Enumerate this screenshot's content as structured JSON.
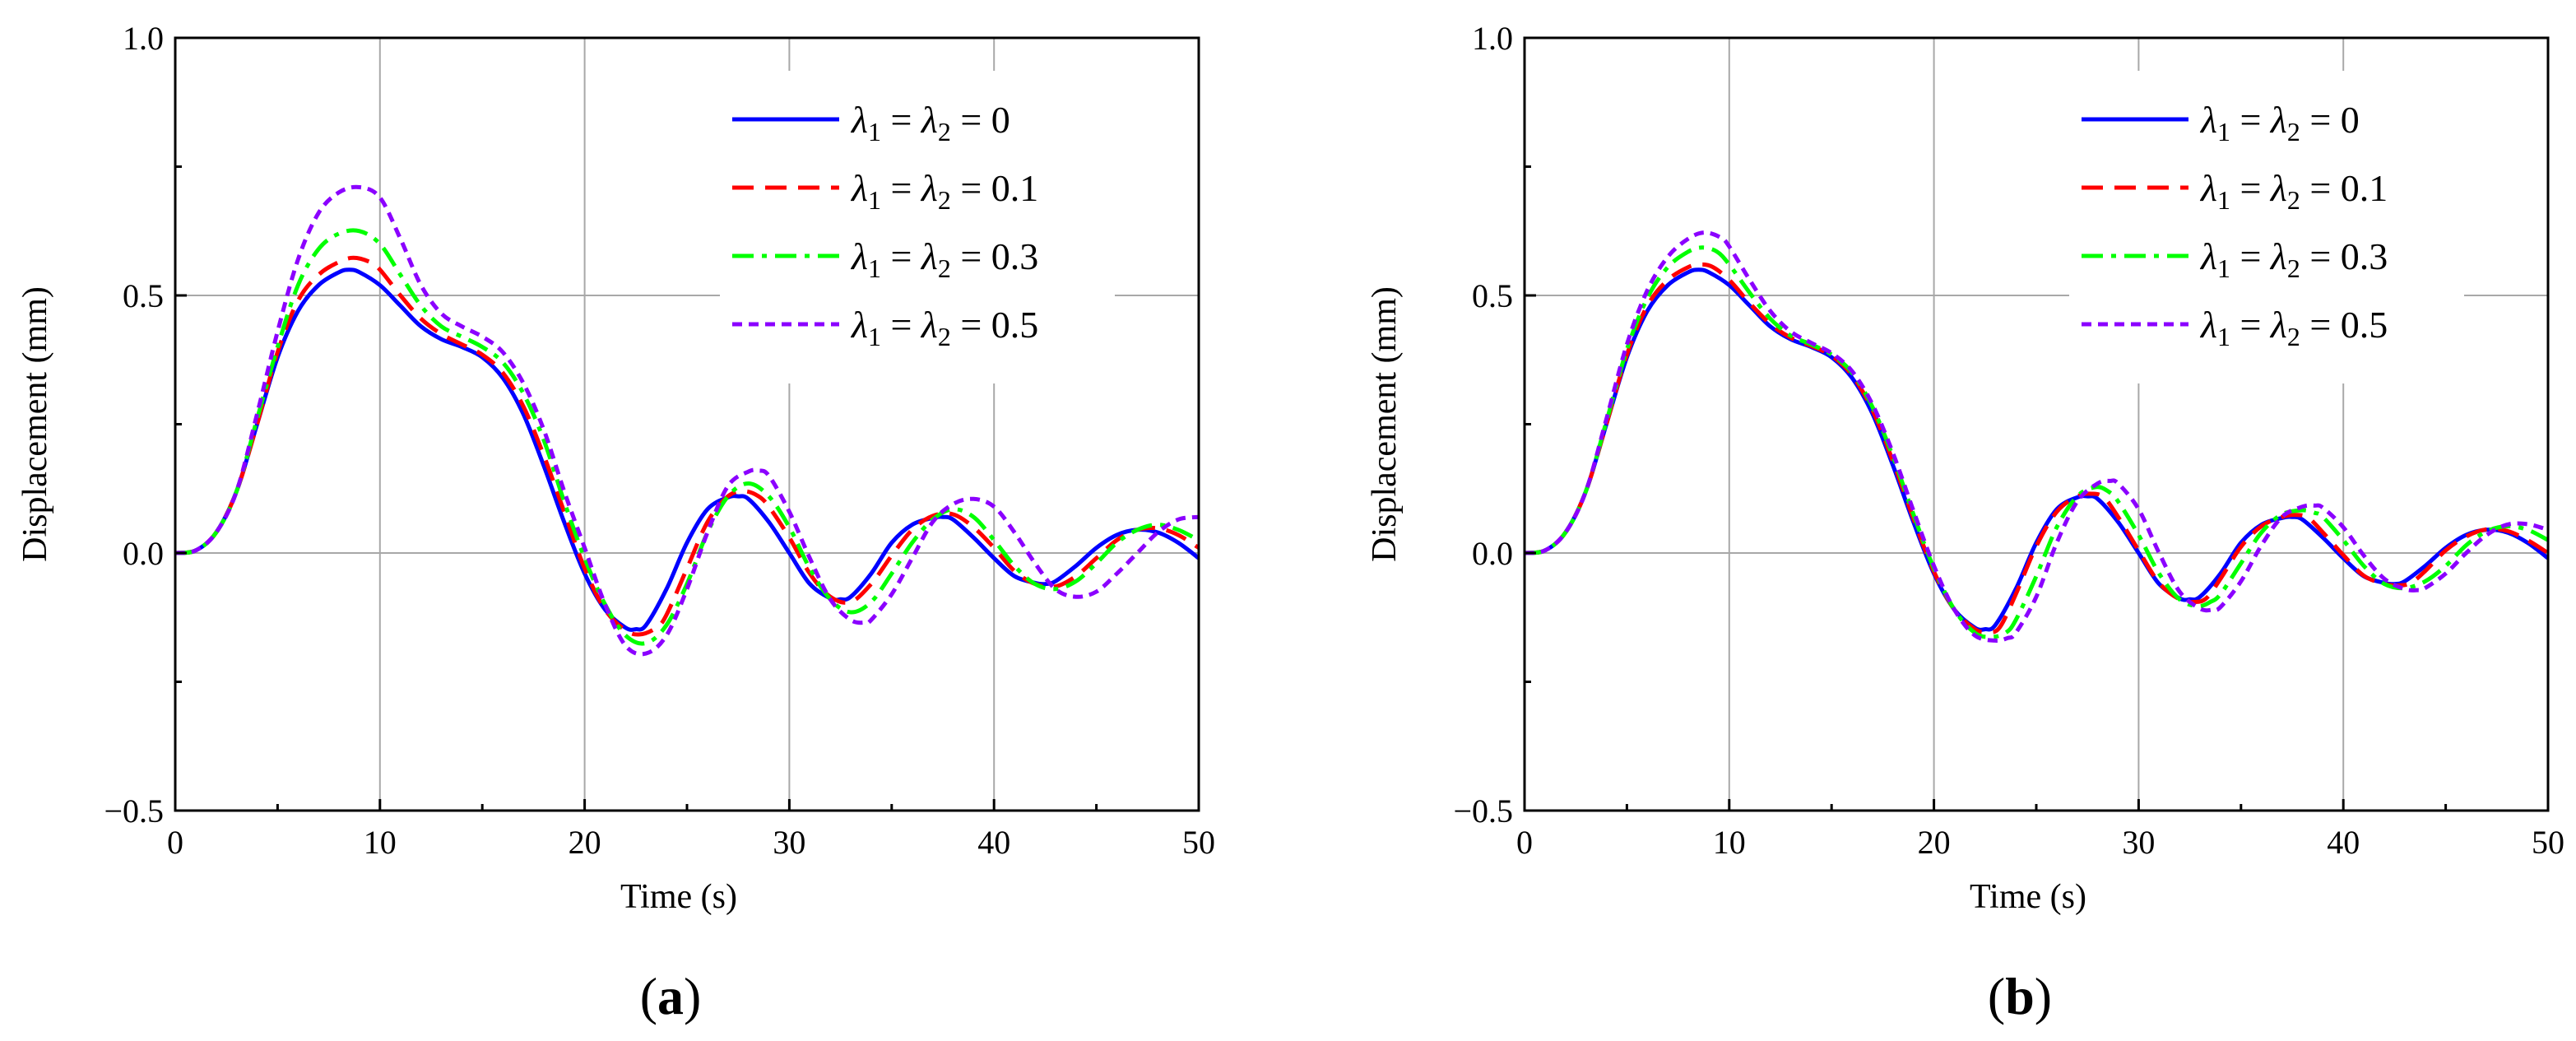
{
  "figure": {
    "panels": [
      {
        "id": "a",
        "label_open": "(",
        "label_letter": "a",
        "label_close": ")"
      },
      {
        "id": "b",
        "label_open": "(",
        "label_letter": "b",
        "label_close": ")"
      }
    ]
  },
  "legend": {
    "lambda_prefix": "λ",
    "sub1": "1",
    "sub2": "2",
    "eq": " = "
  },
  "chart_data": [
    {
      "panel": "a",
      "type": "line",
      "title": "",
      "xlabel": "Time (s)",
      "ylabel": "Displacement (mm)",
      "xlim": [
        0,
        50
      ],
      "ylim": [
        -0.5,
        1.0
      ],
      "xticks": [
        "0",
        "10",
        "20",
        "30",
        "40",
        "50"
      ],
      "yticks": [
        "−0.5",
        "0.0",
        "0.5",
        "1.0"
      ],
      "grid": true,
      "legend_position": "top-right",
      "series": [
        {
          "name": "λ1 = λ2 = 0",
          "value_label": "0",
          "color": "#0000ff",
          "dash": "solid",
          "x": [
            0,
            1,
            2,
            3,
            4,
            5,
            6,
            7,
            8,
            8.5,
            9,
            10,
            11,
            12,
            13,
            14,
            15,
            16,
            17,
            18,
            19,
            20,
            21,
            22,
            22.5,
            23,
            24,
            25,
            26,
            27,
            27.5,
            28,
            29,
            30,
            31,
            32,
            32.5,
            33,
            34,
            35,
            36,
            37,
            37.5,
            38,
            39,
            40,
            41,
            42,
            42.5,
            43,
            44,
            45,
            46,
            47,
            48,
            49,
            50
          ],
          "y": [
            0,
            0.005,
            0.04,
            0.12,
            0.25,
            0.38,
            0.47,
            0.52,
            0.545,
            0.55,
            0.545,
            0.52,
            0.48,
            0.44,
            0.415,
            0.4,
            0.38,
            0.34,
            0.27,
            0.17,
            0.06,
            -0.04,
            -0.11,
            -0.145,
            -0.148,
            -0.14,
            -0.07,
            0.02,
            0.085,
            0.108,
            0.11,
            0.105,
            0.06,
            0.0,
            -0.06,
            -0.088,
            -0.09,
            -0.085,
            -0.04,
            0.02,
            0.055,
            0.068,
            0.07,
            0.065,
            0.03,
            -0.01,
            -0.045,
            -0.058,
            -0.06,
            -0.055,
            -0.025,
            0.01,
            0.035,
            0.045,
            0.04,
            0.02,
            -0.01
          ]
        },
        {
          "name": "λ1 = λ2 = 0.1",
          "value_label": "0.1",
          "color": "#ff0000",
          "dash": "dash",
          "x": [
            0,
            1,
            2,
            3,
            4,
            5,
            6,
            7,
            8,
            8.7,
            9.5,
            10,
            11,
            12,
            13,
            14,
            15,
            16,
            17,
            18,
            19,
            20,
            21,
            22,
            22.7,
            23.5,
            24,
            25,
            26,
            27,
            27.8,
            28.5,
            29,
            30,
            31,
            32,
            33,
            34,
            35,
            36,
            37,
            38,
            39,
            40,
            41,
            42,
            43,
            44,
            45,
            46,
            47,
            48,
            49,
            50
          ],
          "y": [
            0,
            0.005,
            0.04,
            0.12,
            0.25,
            0.39,
            0.49,
            0.54,
            0.565,
            0.573,
            0.565,
            0.55,
            0.5,
            0.455,
            0.425,
            0.405,
            0.385,
            0.35,
            0.285,
            0.19,
            0.08,
            -0.03,
            -0.11,
            -0.15,
            -0.158,
            -0.145,
            -0.12,
            -0.03,
            0.06,
            0.11,
            0.12,
            0.11,
            0.09,
            0.03,
            -0.04,
            -0.085,
            -0.095,
            -0.06,
            -0.005,
            0.045,
            0.072,
            0.075,
            0.05,
            0.01,
            -0.035,
            -0.06,
            -0.065,
            -0.045,
            -0.01,
            0.025,
            0.045,
            0.048,
            0.035,
            0.01
          ]
        },
        {
          "name": "λ1 = λ2 = 0.3",
          "value_label": "0.3",
          "color": "#00ff00",
          "dash": "dashdot",
          "x": [
            0,
            1,
            2,
            3,
            4,
            5,
            6,
            7,
            8,
            9,
            10,
            11,
            12,
            13,
            14,
            15,
            16,
            17,
            18,
            19,
            20,
            21,
            22,
            23,
            24,
            25,
            26,
            27,
            28,
            29,
            30,
            31,
            32,
            33,
            34,
            35,
            36,
            37,
            38,
            39,
            40,
            41,
            42,
            43,
            44,
            45,
            46,
            47,
            48,
            49,
            50
          ],
          "y": [
            0,
            0.005,
            0.04,
            0.12,
            0.26,
            0.4,
            0.52,
            0.59,
            0.62,
            0.625,
            0.6,
            0.54,
            0.48,
            0.44,
            0.42,
            0.4,
            0.37,
            0.31,
            0.22,
            0.1,
            -0.01,
            -0.1,
            -0.16,
            -0.175,
            -0.14,
            -0.06,
            0.04,
            0.11,
            0.135,
            0.11,
            0.05,
            -0.03,
            -0.09,
            -0.115,
            -0.095,
            -0.04,
            0.02,
            0.065,
            0.085,
            0.07,
            0.025,
            -0.025,
            -0.06,
            -0.07,
            -0.055,
            -0.02,
            0.02,
            0.045,
            0.055,
            0.045,
            0.025
          ]
        },
        {
          "name": "λ1 = λ2 = 0.5",
          "value_label": "0.5",
          "color": "#8b00ff",
          "dash": "short-dash",
          "x": [
            0,
            1,
            2,
            3,
            4,
            5,
            6,
            7,
            8,
            9,
            10,
            11,
            12,
            13,
            14,
            15,
            16,
            17,
            18,
            19,
            20,
            21,
            22,
            23,
            24,
            25,
            26,
            27,
            28,
            28.5,
            29,
            30,
            31,
            32,
            33,
            33.7,
            34,
            35,
            36,
            37,
            38,
            39,
            40,
            41,
            42,
            43,
            44,
            45,
            46,
            47,
            48,
            49,
            50
          ],
          "y": [
            0,
            0.005,
            0.04,
            0.12,
            0.27,
            0.43,
            0.57,
            0.66,
            0.7,
            0.71,
            0.69,
            0.61,
            0.52,
            0.465,
            0.44,
            0.42,
            0.39,
            0.33,
            0.24,
            0.12,
            0.01,
            -0.1,
            -0.18,
            -0.195,
            -0.16,
            -0.07,
            0.04,
            0.13,
            0.158,
            0.16,
            0.15,
            0.08,
            -0.01,
            -0.09,
            -0.13,
            -0.135,
            -0.13,
            -0.08,
            -0.01,
            0.06,
            0.095,
            0.105,
            0.09,
            0.04,
            -0.02,
            -0.07,
            -0.085,
            -0.075,
            -0.04,
            0.0,
            0.04,
            0.065,
            0.07
          ]
        }
      ]
    },
    {
      "panel": "b",
      "type": "line",
      "title": "",
      "xlabel": "Time (s)",
      "ylabel": "Displacement (mm)",
      "xlim": [
        0,
        50
      ],
      "ylim": [
        -0.5,
        1.0
      ],
      "xticks": [
        "0",
        "10",
        "20",
        "30",
        "40",
        "50"
      ],
      "yticks": [
        "−0.5",
        "0.0",
        "0.5",
        "1.0"
      ],
      "grid": true,
      "legend_position": "top-right",
      "series": [
        {
          "name": "λ1 = λ2 = 0",
          "value_label": "0",
          "color": "#0000ff",
          "dash": "solid",
          "x": [
            0,
            1,
            2,
            3,
            4,
            5,
            6,
            7,
            8,
            8.5,
            9,
            10,
            11,
            12,
            13,
            14,
            15,
            16,
            17,
            18,
            19,
            20,
            21,
            22,
            22.5,
            23,
            24,
            25,
            26,
            27,
            27.5,
            28,
            29,
            30,
            31,
            32,
            32.5,
            33,
            34,
            35,
            36,
            37,
            37.5,
            38,
            39,
            40,
            41,
            42,
            42.5,
            43,
            44,
            45,
            46,
            47,
            48,
            49,
            50
          ],
          "y": [
            0,
            0.005,
            0.04,
            0.12,
            0.25,
            0.38,
            0.47,
            0.52,
            0.545,
            0.55,
            0.545,
            0.52,
            0.48,
            0.44,
            0.415,
            0.4,
            0.38,
            0.34,
            0.27,
            0.17,
            0.06,
            -0.04,
            -0.11,
            -0.145,
            -0.148,
            -0.14,
            -0.07,
            0.02,
            0.085,
            0.108,
            0.11,
            0.105,
            0.06,
            0.0,
            -0.06,
            -0.088,
            -0.09,
            -0.085,
            -0.04,
            0.02,
            0.055,
            0.068,
            0.07,
            0.065,
            0.03,
            -0.01,
            -0.045,
            -0.058,
            -0.06,
            -0.055,
            -0.025,
            0.01,
            0.035,
            0.045,
            0.04,
            0.02,
            -0.01
          ]
        },
        {
          "name": "λ1 = λ2 = 0.1",
          "value_label": "0.1",
          "color": "#ff0000",
          "dash": "dash",
          "x": [
            0,
            1,
            2,
            3,
            4,
            5,
            6,
            7,
            8,
            8.6,
            9.2,
            10,
            11,
            12,
            13,
            14,
            15,
            16,
            17,
            18,
            19,
            20,
            21,
            22,
            22.6,
            23.2,
            24,
            25,
            26,
            27,
            27.7,
            28.3,
            29,
            30,
            31,
            32,
            32.7,
            33.3,
            34,
            35,
            36,
            37,
            37.7,
            38.3,
            39,
            40,
            41,
            42,
            42.7,
            43.3,
            44,
            45,
            46,
            47,
            48,
            49,
            50
          ],
          "y": [
            0,
            0.005,
            0.04,
            0.12,
            0.25,
            0.385,
            0.48,
            0.53,
            0.555,
            0.56,
            0.555,
            0.53,
            0.485,
            0.445,
            0.418,
            0.402,
            0.383,
            0.345,
            0.277,
            0.178,
            0.067,
            -0.036,
            -0.11,
            -0.148,
            -0.153,
            -0.145,
            -0.08,
            0.013,
            0.08,
            0.11,
            0.115,
            0.108,
            0.07,
            0.005,
            -0.058,
            -0.09,
            -0.095,
            -0.088,
            -0.05,
            0.012,
            0.052,
            0.07,
            0.074,
            0.068,
            0.04,
            -0.004,
            -0.044,
            -0.06,
            -0.063,
            -0.058,
            -0.035,
            0.005,
            0.032,
            0.046,
            0.043,
            0.025,
            0.0
          ]
        },
        {
          "name": "λ1 = λ2 = 0.3",
          "value_label": "0.3",
          "color": "#00ff00",
          "dash": "dashdot",
          "x": [
            0,
            1,
            2,
            3,
            4,
            5,
            6,
            7,
            8,
            8.7,
            9.4,
            10,
            11,
            12,
            13,
            14,
            15,
            16,
            17,
            18,
            19,
            20,
            21,
            22,
            22.8,
            23.5,
            24,
            25,
            26,
            27,
            27.9,
            28.5,
            29,
            30,
            31,
            32,
            32.9,
            33.5,
            34,
            35,
            36,
            37,
            38,
            38.6,
            39,
            40,
            41,
            42,
            43,
            44,
            45,
            46,
            47,
            48,
            49,
            50
          ],
          "y": [
            0,
            0.005,
            0.04,
            0.12,
            0.255,
            0.395,
            0.495,
            0.555,
            0.585,
            0.593,
            0.585,
            0.56,
            0.505,
            0.455,
            0.422,
            0.405,
            0.385,
            0.35,
            0.283,
            0.187,
            0.075,
            -0.03,
            -0.11,
            -0.155,
            -0.163,
            -0.155,
            -0.13,
            -0.045,
            0.05,
            0.11,
            0.128,
            0.12,
            0.1,
            0.035,
            -0.04,
            -0.09,
            -0.103,
            -0.095,
            -0.08,
            -0.02,
            0.04,
            0.075,
            0.083,
            0.078,
            0.07,
            0.025,
            -0.025,
            -0.06,
            -0.068,
            -0.055,
            -0.025,
            0.015,
            0.042,
            0.052,
            0.045,
            0.025
          ]
        },
        {
          "name": "λ1 = λ2 = 0.5",
          "value_label": "0.5",
          "color": "#8b00ff",
          "dash": "short-dash",
          "x": [
            0,
            1,
            2,
            3,
            4,
            5,
            6,
            7,
            8,
            8.8,
            9.6,
            10,
            11,
            12,
            13,
            14,
            15,
            16,
            17,
            18,
            19,
            20,
            21,
            22,
            23,
            23.6,
            24,
            25,
            26,
            27,
            28,
            28.6,
            29,
            30,
            31,
            32,
            33,
            33.6,
            34,
            35,
            36,
            37,
            38,
            38.6,
            39,
            40,
            41,
            42,
            43,
            43.6,
            44,
            45,
            46,
            47,
            48,
            49,
            50
          ],
          "y": [
            0,
            0.005,
            0.04,
            0.12,
            0.26,
            0.405,
            0.51,
            0.575,
            0.61,
            0.622,
            0.612,
            0.595,
            0.53,
            0.47,
            0.43,
            0.408,
            0.388,
            0.353,
            0.288,
            0.194,
            0.082,
            -0.025,
            -0.11,
            -0.16,
            -0.17,
            -0.165,
            -0.155,
            -0.085,
            0.02,
            0.1,
            0.135,
            0.14,
            0.135,
            0.085,
            0.0,
            -0.075,
            -0.108,
            -0.11,
            -0.105,
            -0.055,
            0.015,
            0.07,
            0.09,
            0.092,
            0.088,
            0.05,
            -0.005,
            -0.05,
            -0.07,
            -0.072,
            -0.068,
            -0.04,
            0.0,
            0.035,
            0.055,
            0.056,
            0.045
          ]
        }
      ]
    }
  ]
}
